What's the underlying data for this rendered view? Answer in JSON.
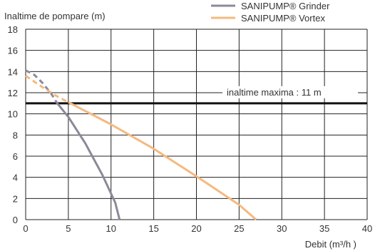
{
  "chart_data": {
    "type": "line",
    "title": "",
    "ylabel": "Inaltime de pompare (m)",
    "xlabel": "Debit (m³/h )",
    "xlim": [
      0,
      40
    ],
    "ylim": [
      0,
      18
    ],
    "x_ticks": [
      0,
      5,
      10,
      15,
      20,
      25,
      30,
      35,
      40
    ],
    "y_ticks": [
      0,
      2,
      4,
      6,
      8,
      10,
      12,
      14,
      16,
      18
    ],
    "x_tick_labels": [
      "0",
      "5",
      "10",
      "15",
      "20",
      "25",
      "30",
      "35",
      "40"
    ],
    "y_tick_labels": [
      "0",
      "2",
      "4",
      "6",
      "8",
      "10",
      "12",
      "14",
      "16",
      "18"
    ],
    "grid": true,
    "legend_position": "top-right",
    "series": [
      {
        "name": "SANIPUMP® Grinder",
        "color": "#8a8a99",
        "dashed": [
          [
            0,
            14.1
          ],
          [
            1,
            13.7
          ],
          [
            2,
            12.9
          ],
          [
            3,
            11.9
          ],
          [
            3.7,
            11.0
          ]
        ],
        "solid": [
          [
            3.7,
            11.0
          ],
          [
            5,
            9.7
          ],
          [
            7,
            7.2
          ],
          [
            9,
            4.2
          ],
          [
            10.5,
            1.6
          ],
          [
            11,
            0
          ]
        ]
      },
      {
        "name": "SANIPUMP® Vortex",
        "color": "#f5b97f",
        "dashed": [
          [
            0,
            13.6
          ],
          [
            2,
            12.5
          ],
          [
            3.8,
            11.6
          ],
          [
            5,
            11.1
          ]
        ],
        "solid": [
          [
            5,
            11.1
          ],
          [
            10,
            9.0
          ],
          [
            15,
            6.7
          ],
          [
            20,
            4.1
          ],
          [
            25,
            1.4
          ],
          [
            27,
            0
          ]
        ]
      }
    ],
    "reference_line": {
      "y": 11,
      "label": "inaltime maxima : 11 m",
      "color": "#111111"
    }
  }
}
